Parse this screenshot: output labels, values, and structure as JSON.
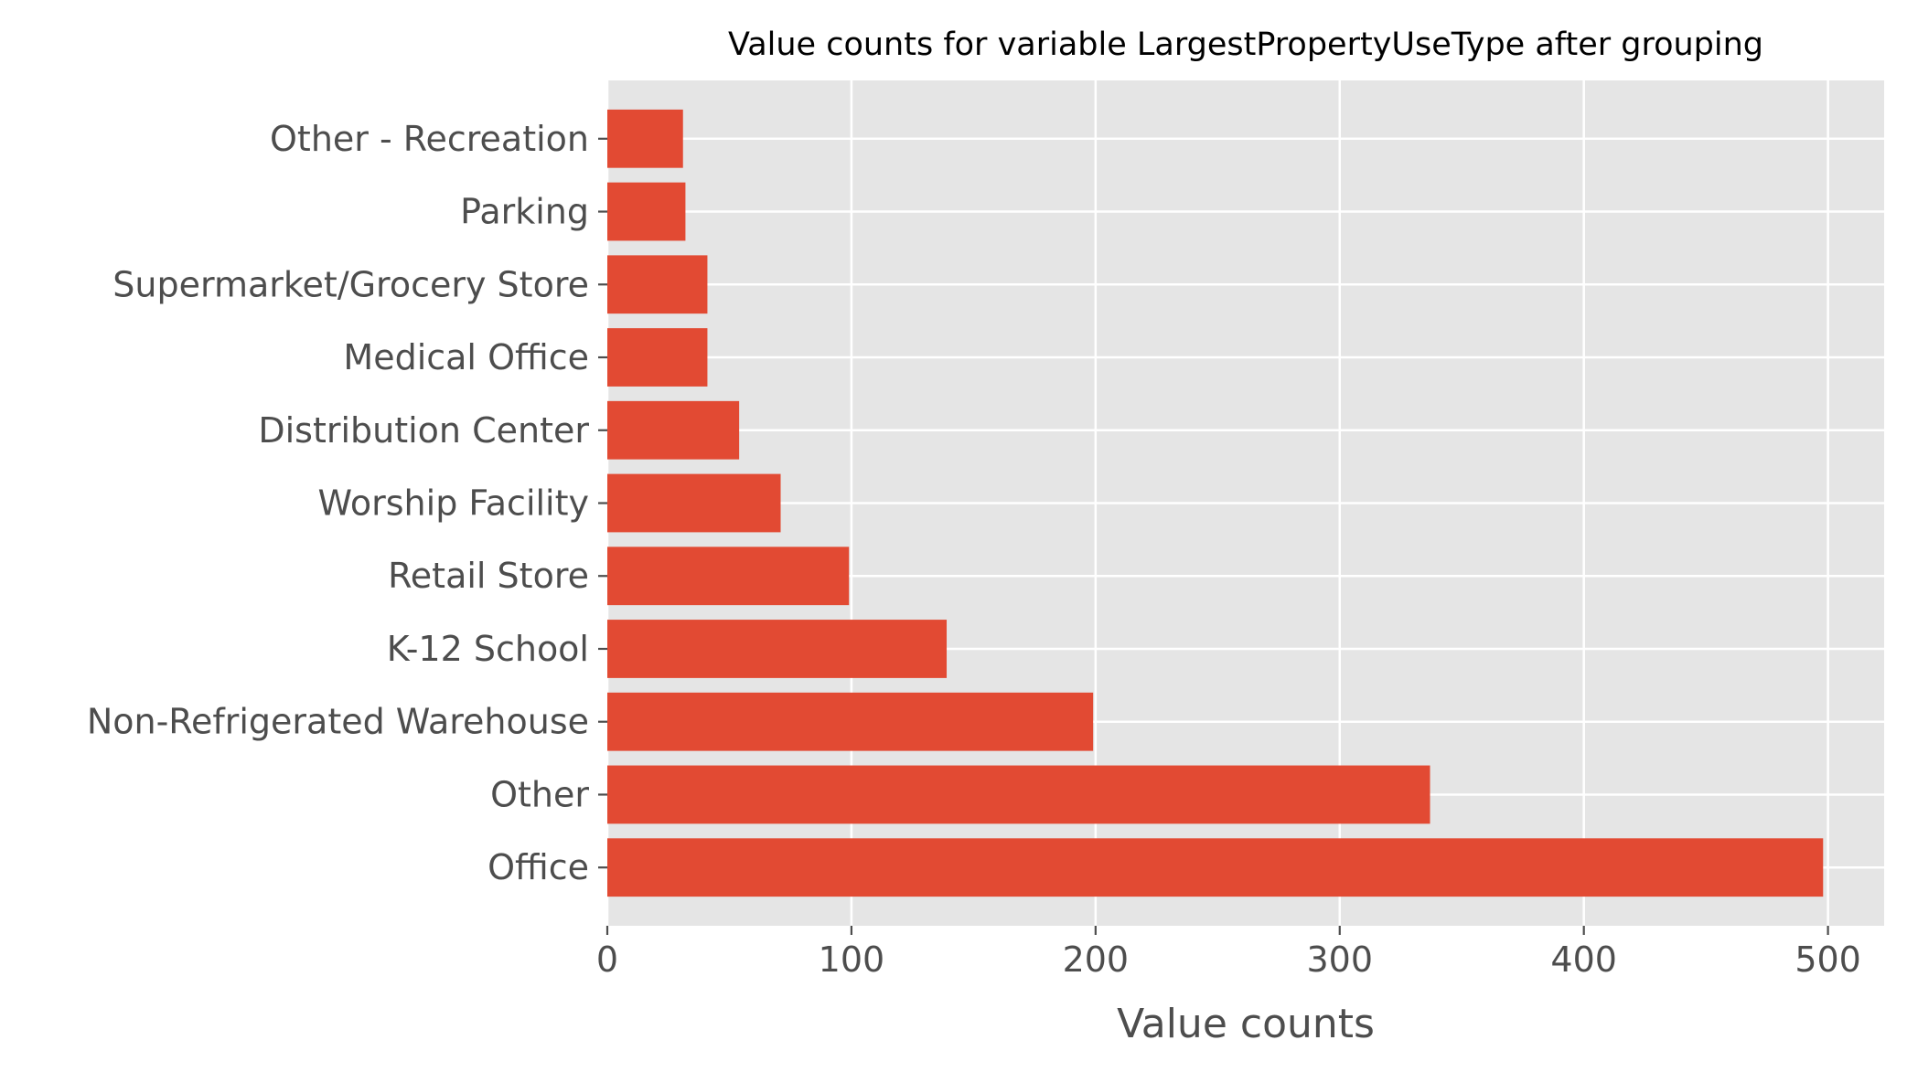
{
  "chart_data": {
    "type": "bar",
    "orientation": "horizontal",
    "title": "Value counts for variable LargestPropertyUseType after grouping",
    "xlabel": "Value counts",
    "ylabel": "",
    "categories": [
      "Office",
      "Other",
      "Non-Refrigerated Warehouse",
      "K-12 School",
      "Retail Store",
      "Worship Facility",
      "Distribution Center",
      "Medical Office",
      "Supermarket/Grocery Store",
      "Parking",
      "Other - Recreation"
    ],
    "values": [
      498,
      337,
      199,
      139,
      99,
      71,
      54,
      41,
      41,
      32,
      31
    ],
    "xlim": [
      0,
      523
    ],
    "xticks": [
      "0",
      "100",
      "200",
      "300",
      "400",
      "500"
    ],
    "grid": true,
    "colors": {
      "bar": "#E24A33",
      "plot_background": "#E5E5E5",
      "grid": "#FFFFFF",
      "tick_text": "#4D4D4D"
    }
  }
}
